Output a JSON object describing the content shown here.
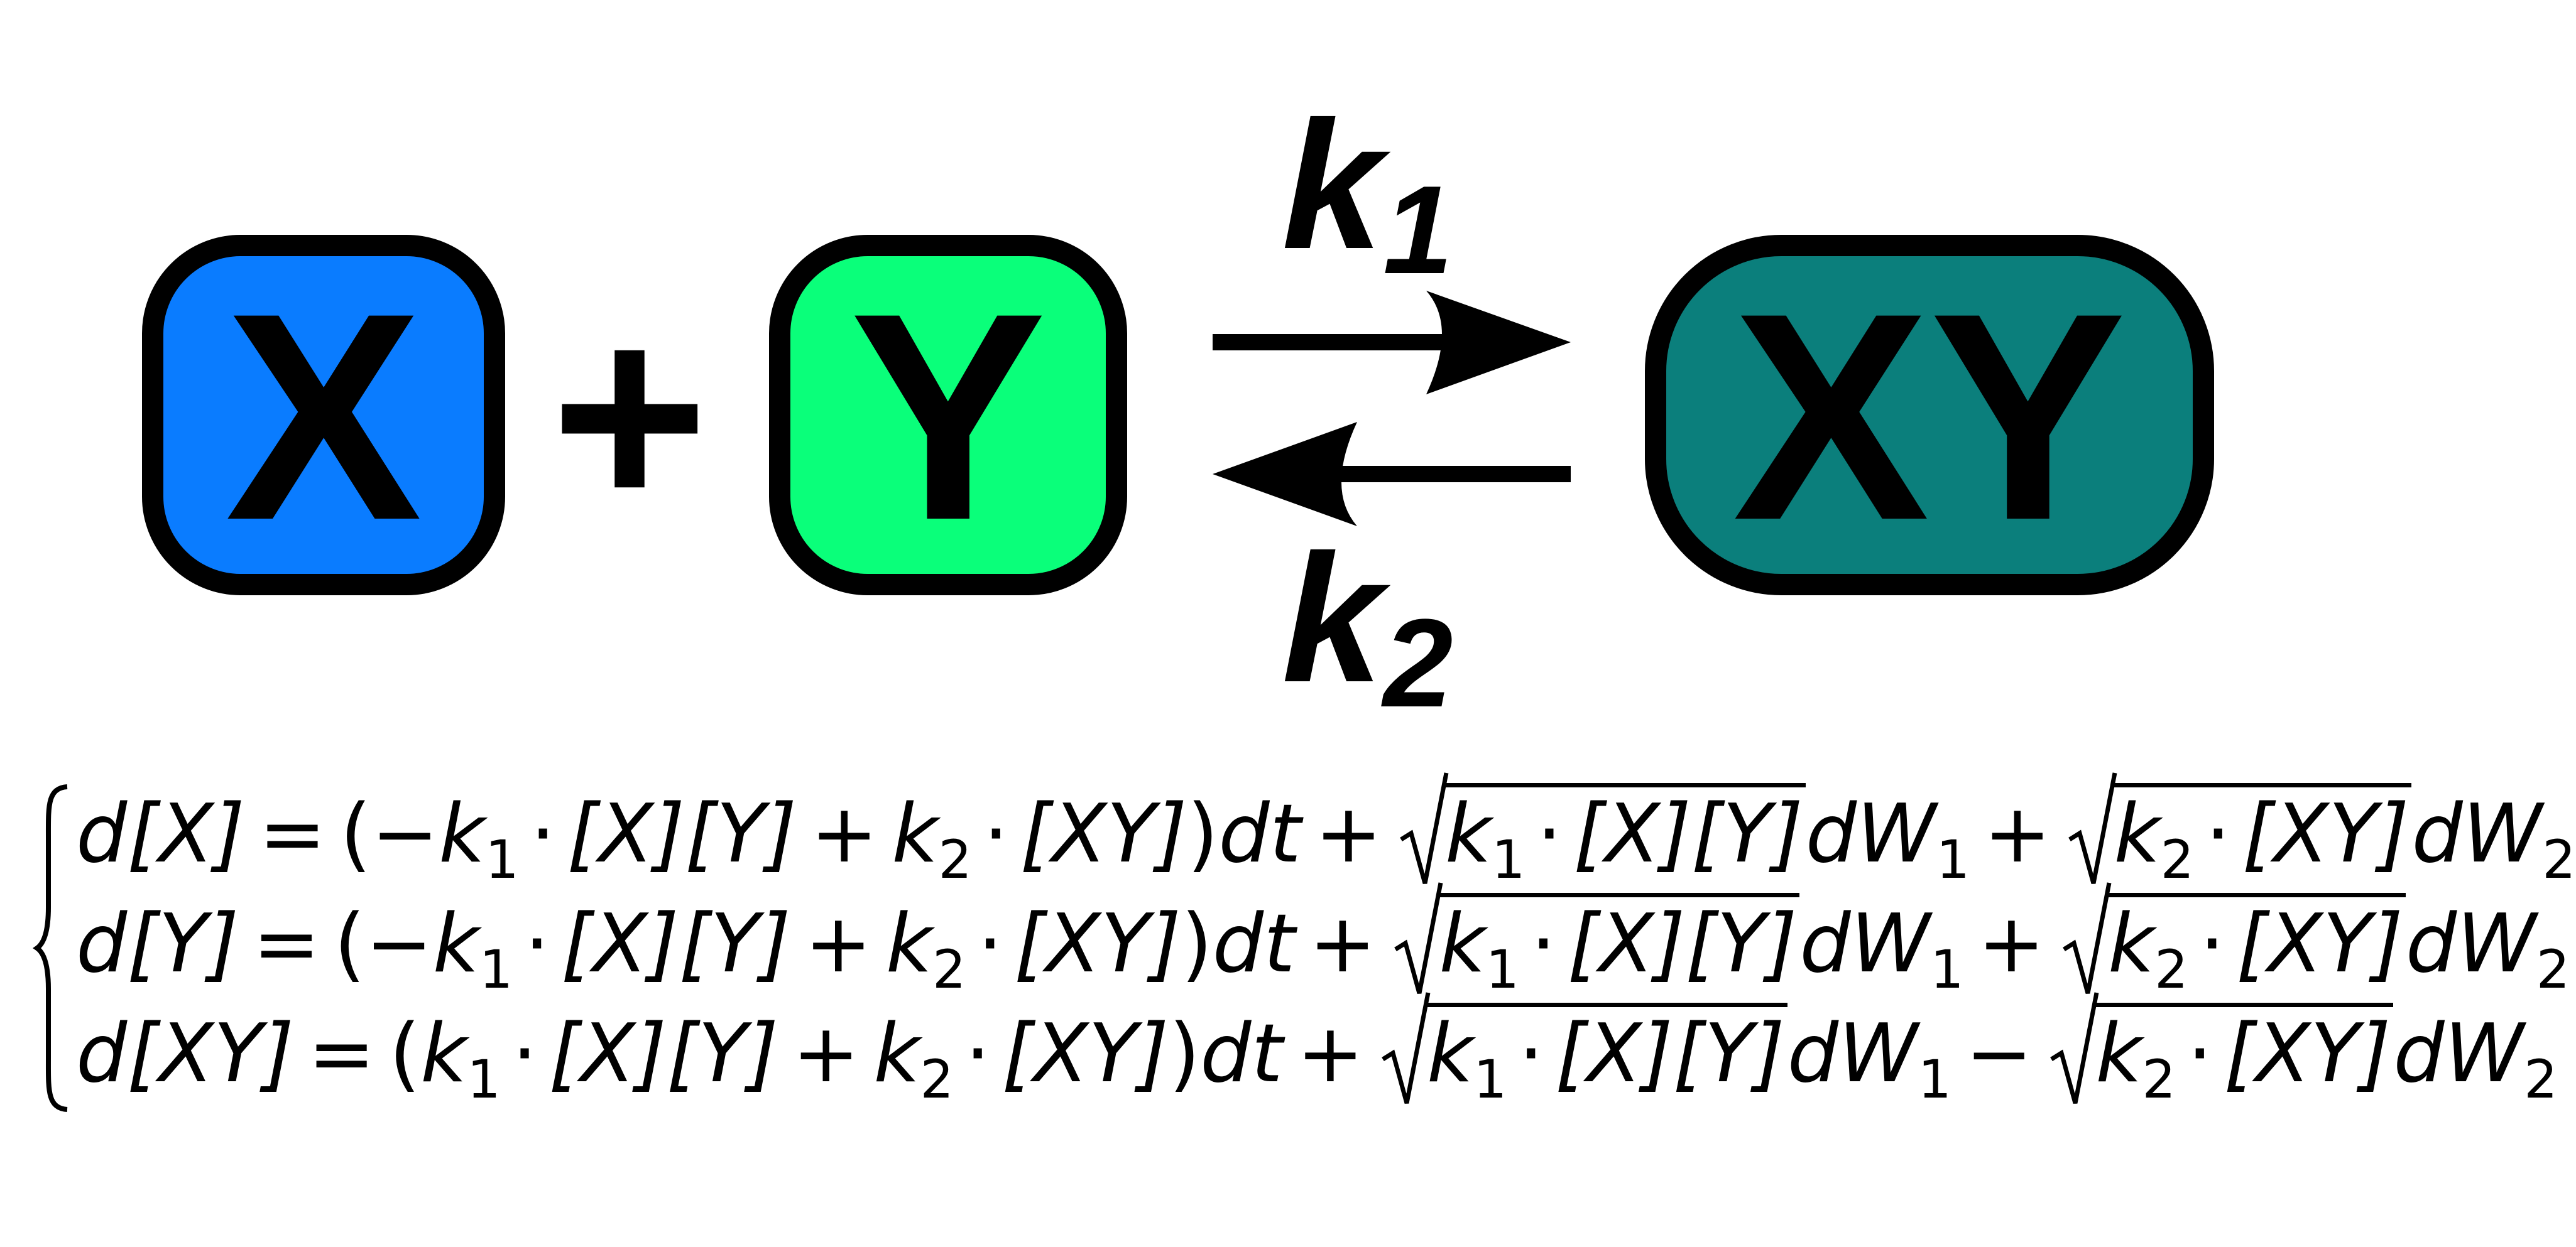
{
  "reaction": {
    "reactant_1": {
      "label": "X",
      "color": "#0a7cff"
    },
    "plus_sign": "+",
    "reactant_2": {
      "label": "Y",
      "color": "#0aff7a"
    },
    "forward_rate": {
      "symbol": "k",
      "subscript": "1"
    },
    "reverse_rate": {
      "symbol": "k",
      "subscript": "2"
    },
    "product": {
      "label": "XY",
      "color": "#0b7f7c"
    },
    "outline_color": "#000000",
    "arrow_icons": [
      "forward-arrow-icon",
      "reverse-arrow-icon"
    ]
  },
  "equations": [
    {
      "lhs": "d[X]",
      "equals": "=",
      "drift_sign": "−",
      "noise_2_sign": "+"
    },
    {
      "lhs": "d[Y]",
      "equals": "=",
      "drift_sign": "−",
      "noise_2_sign": "+"
    },
    {
      "lhs": "d[XY]",
      "equals": "=",
      "drift_sign": "",
      "noise_2_sign": "−"
    }
  ],
  "terms": {
    "k1": "k",
    "k1_sub": "1",
    "k2": "k",
    "k2_sub": "2",
    "xy_conc": "[X][Y]",
    "complex_conc": "[XY]",
    "dt": "dt",
    "dW": "dW",
    "w1_sub": "1",
    "w2_sub": "2",
    "open_paren": "(",
    "close_paren": ")",
    "plus": "+",
    "cdot": "·"
  }
}
